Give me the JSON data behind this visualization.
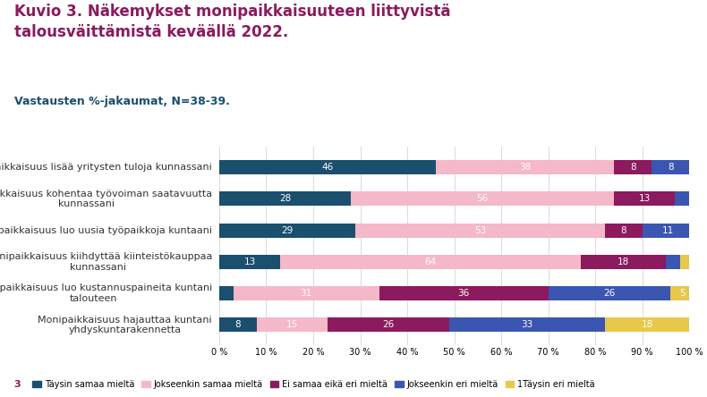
{
  "title_line1": "Kuvio 3. Näkemykset monipaikkaisuuteen liittyvistä",
  "title_line2": "talousväittämistä keväällä 2022.",
  "subtitle": "Vastausten %-jakaumat, N=38-39.",
  "categories": [
    "Monipaikkaisuus lisää yritysten tuloja kunnassani",
    "Monipaikkaisuus kohentaa työvoiman saatavuutta\nkunnassani",
    "Monipaikkaisuus luo uusia työpaikkoja kuntaani",
    "Monipaikkaisuus kiihdyttää kiinteistökauppaa\nkunnassani",
    "Monipaikkaisuus luo kustannuspaineita kuntani\ntalouteen",
    "Monipaikkaisuus hajauttaa kuntani\nyhdyskuntarakennetta"
  ],
  "series": [
    {
      "name": "Täysin samaa mieltä",
      "color": "#1a4f6e",
      "values": [
        46,
        28,
        29,
        13,
        3,
        8
      ]
    },
    {
      "name": "Jokseenkin samaa mieltä",
      "color": "#f5b8c8",
      "values": [
        38,
        56,
        53,
        64,
        31,
        15
      ]
    },
    {
      "name": "Ei samaa eikä eri mieltä",
      "color": "#8b1a5e",
      "values": [
        8,
        13,
        8,
        18,
        36,
        26
      ]
    },
    {
      "name": "Jokseenkin eri mieltä",
      "color": "#3a56b0",
      "values": [
        8,
        3,
        11,
        3,
        26,
        33
      ]
    },
    {
      "name": "1Täysin eri mieltä",
      "color": "#e8c84a",
      "values": [
        0,
        0,
        0,
        3,
        5,
        18
      ]
    }
  ],
  "background_color": "#ffffff",
  "title_color": "#8b1a5e",
  "subtitle_color": "#1a4f6e",
  "bar_label_color": "#ffffff",
  "bar_height": 0.45,
  "figsize": [
    7.9,
    4.44
  ],
  "dpi": 100
}
